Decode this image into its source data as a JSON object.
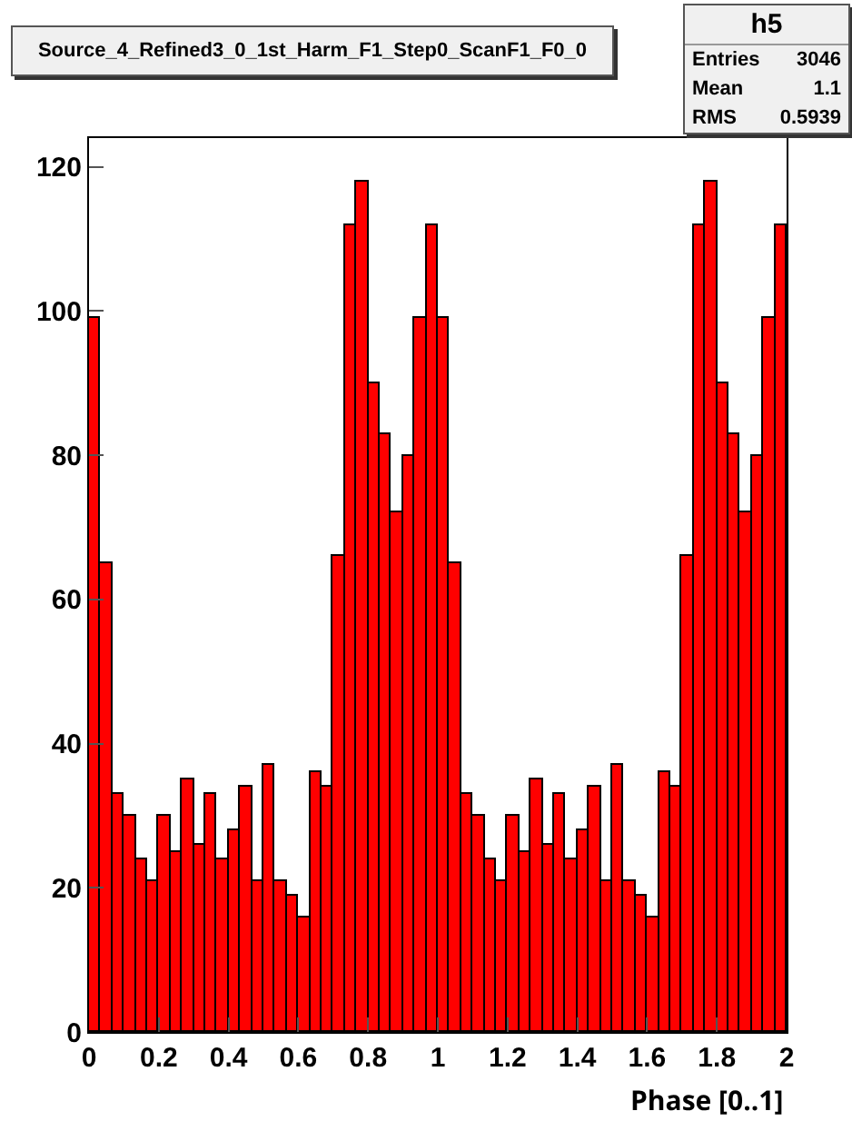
{
  "chart_data": {
    "type": "histogram",
    "title": "Source_4_Refined3_0_1st_Harm_F1_Step0_ScanF1_F0_0",
    "xlabel": "Phase [0..1]",
    "annotations": [
      "h5",
      "Entries 3046",
      "Mean 1.1",
      "RMS 0.5939"
    ],
    "bins": [
      0,
      0.0333,
      0.0667,
      0.1,
      0.1333,
      0.1667,
      0.2,
      0.2333,
      0.2667,
      0.3,
      0.3333,
      0.3667,
      0.4,
      0.4333,
      0.4667,
      0.5,
      0.5333,
      0.5667,
      0.6,
      0.6333,
      0.6667,
      0.7,
      0.7333,
      0.7667,
      0.8,
      0.8333,
      0.8667,
      0.9,
      0.9333,
      0.9667,
      1,
      1.0333,
      1.0667,
      1.1,
      1.1333,
      1.1667,
      1.2,
      1.2333,
      1.2667,
      1.3,
      1.3333,
      1.3667,
      1.4,
      1.4333,
      1.4667,
      1.5,
      1.5333,
      1.5667,
      1.6,
      1.6333,
      1.6667,
      1.7,
      1.7333,
      1.7667,
      1.8,
      1.8333,
      1.8667,
      1.9,
      1.9333,
      1.9667,
      2
    ],
    "values": [
      99,
      65,
      33,
      30,
      24,
      21,
      30,
      25,
      35,
      26,
      33,
      24,
      28,
      34,
      21,
      37,
      21,
      19,
      16,
      36,
      34,
      66,
      112,
      118,
      90,
      83,
      72,
      80,
      99,
      112,
      99,
      65,
      33,
      30,
      24,
      21,
      30,
      25,
      35,
      26,
      33,
      24,
      28,
      34,
      21,
      37,
      21,
      19,
      16,
      36,
      34,
      66,
      112,
      118,
      90,
      83,
      72,
      80,
      99,
      112
    ],
    "color": "#ff0000",
    "xlim": [
      0,
      2
    ],
    "xticks": [
      0,
      0.2,
      0.4,
      0.6,
      0.8,
      1,
      1.2,
      1.4,
      1.6,
      1.8,
      2
    ],
    "ylim": [
      0,
      124
    ],
    "yticks": [
      0,
      20,
      40,
      60,
      80,
      100,
      120
    ]
  }
}
